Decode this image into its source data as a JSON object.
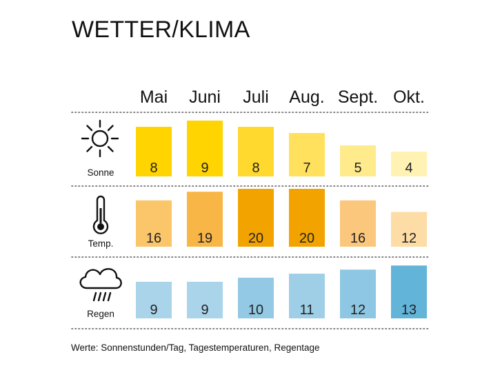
{
  "title": "WETTER/KLIMA",
  "footnote": "Werte: Sonnenstunden/Tag, Tagestemperaturen, Regentage",
  "chart_data": {
    "type": "bar",
    "categories": [
      "Mai",
      "Juni",
      "Juli",
      "Aug.",
      "Sept.",
      "Okt."
    ],
    "series": [
      {
        "name": "Sonne",
        "icon": "sun-icon",
        "values": [
          8,
          9,
          8,
          7,
          5,
          4
        ],
        "colors": [
          "#FFD400",
          "#FFD400",
          "#FFD92E",
          "#FFE15E",
          "#FFEA8C",
          "#FFF2B3"
        ]
      },
      {
        "name": "Temp.",
        "icon": "thermometer-icon",
        "values": [
          16,
          19,
          20,
          20,
          16,
          12
        ],
        "colors": [
          "#FBC56A",
          "#F8B647",
          "#F2A300",
          "#F2A300",
          "#FBC77C",
          "#FDDCA6"
        ]
      },
      {
        "name": "Regen",
        "icon": "rain-cloud-icon",
        "values": [
          9,
          9,
          10,
          11,
          12,
          13
        ],
        "colors": [
          "#A9D4EA",
          "#A9D4EA",
          "#93C9E4",
          "#9ECFE7",
          "#8EC7E3",
          "#62B4D9"
        ]
      }
    ]
  }
}
